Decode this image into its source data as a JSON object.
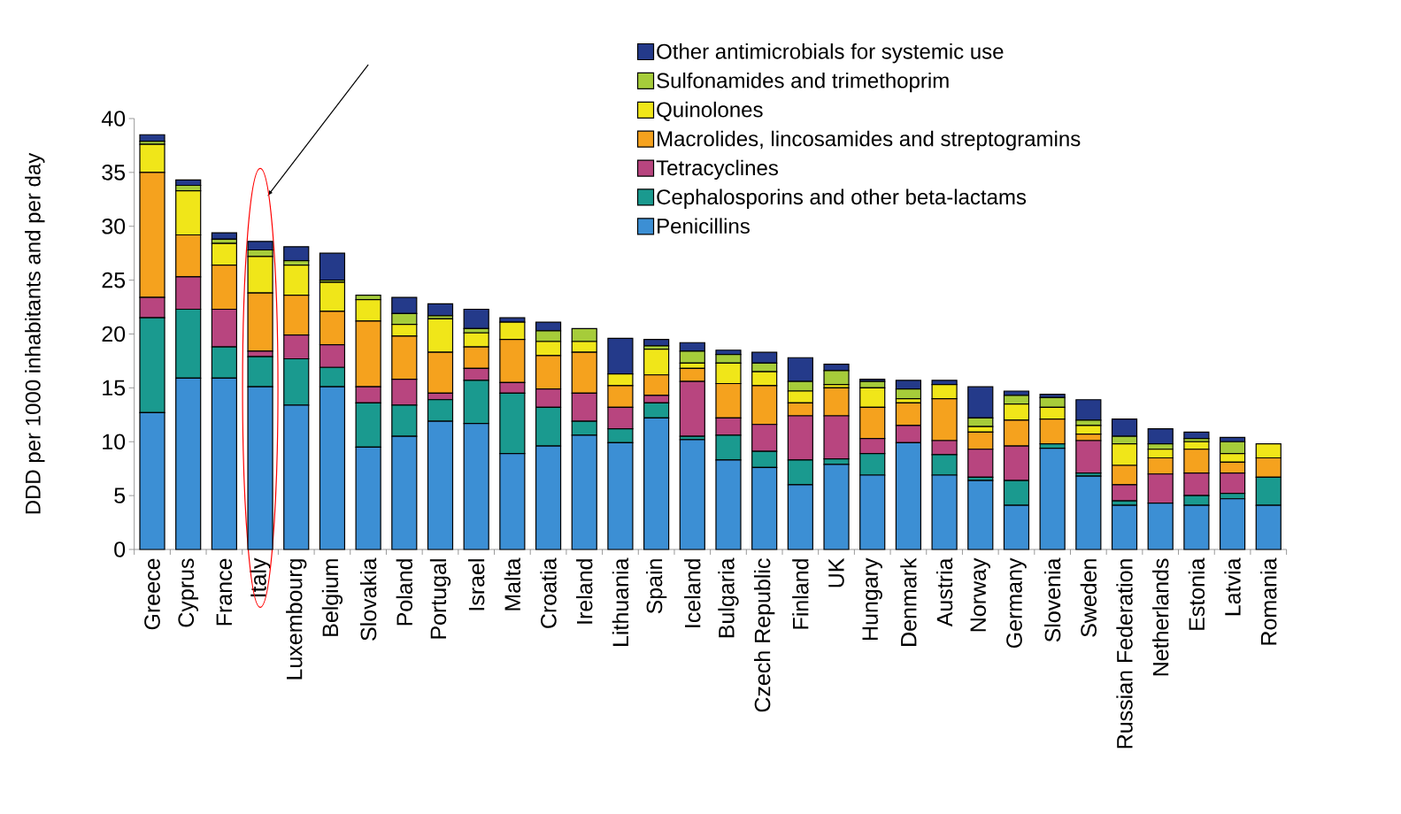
{
  "chart_data": {
    "type": "bar",
    "stacked": true,
    "ylabel": "DDD per 1000 inhabitants and per day",
    "categories": [
      "Greece",
      "Cyprus",
      "France",
      "Italy",
      "Luxembourg",
      "Belgium",
      "Slovakia",
      "Poland",
      "Portugal",
      "Israel",
      "Malta",
      "Croatia",
      "Ireland",
      "Lithuania",
      "Spain",
      "Iceland",
      "Bulgaria",
      "Czech Republic",
      "Finland",
      "UK",
      "Hungary",
      "Denmark",
      "Austria",
      "Norway",
      "Germany",
      "Slovenia",
      "Sweden",
      "Russian Federation",
      "Netherlands",
      "Estonia",
      "Latvia",
      "Romania"
    ],
    "series": [
      {
        "name": "Penicillins",
        "color": "#3c8fd4",
        "values": [
          12.7,
          15.9,
          15.9,
          15.1,
          13.4,
          15.1,
          9.5,
          10.5,
          11.9,
          11.7,
          8.9,
          9.6,
          10.6,
          9.9,
          12.2,
          10.2,
          8.3,
          7.6,
          6.0,
          7.9,
          6.9,
          9.9,
          6.9,
          6.4,
          4.1,
          9.4,
          6.8,
          4.1,
          4.3,
          4.1,
          4.7,
          4.1
        ]
      },
      {
        "name": "Cephalosporins and other beta-lactams",
        "color": "#1a9a8f",
        "values": [
          8.8,
          6.4,
          2.9,
          2.8,
          4.3,
          1.8,
          4.1,
          2.9,
          2.0,
          4.0,
          5.6,
          3.6,
          1.3,
          1.3,
          1.4,
          0.3,
          2.3,
          1.5,
          2.3,
          0.5,
          2.0,
          null,
          1.9,
          0.3,
          2.3,
          0.4,
          0.3,
          0.4,
          null,
          0.9,
          0.5,
          2.6
        ]
      },
      {
        "name": "Tetracyclines",
        "color": "#b8457f",
        "values": [
          1.9,
          3.0,
          3.5,
          0.5,
          2.2,
          2.1,
          1.5,
          2.4,
          0.6,
          1.1,
          1.0,
          1.7,
          2.6,
          2.0,
          0.7,
          5.1,
          1.6,
          2.5,
          4.1,
          4.0,
          1.4,
          1.6,
          1.3,
          2.6,
          3.2,
          0.0,
          3.0,
          1.5,
          2.7,
          2.1,
          1.9,
          null
        ]
      },
      {
        "name": "Macrolides, lincosamides and streptogramins",
        "color": "#f5a21e",
        "values": [
          11.6,
          3.9,
          4.1,
          5.4,
          3.7,
          3.1,
          6.1,
          4.0,
          3.8,
          2.0,
          4.0,
          3.1,
          3.8,
          2.0,
          1.9,
          1.2,
          3.2,
          3.6,
          1.2,
          2.6,
          2.9,
          2.1,
          3.9,
          1.6,
          2.4,
          2.3,
          0.6,
          1.8,
          1.5,
          2.2,
          1.0,
          1.8
        ]
      },
      {
        "name": "Quinolones",
        "color": "#f0e619",
        "values": [
          2.6,
          4.1,
          2.0,
          3.4,
          2.8,
          2.7,
          2.0,
          1.1,
          3.1,
          1.3,
          1.6,
          1.3,
          1.0,
          1.1,
          2.4,
          0.5,
          1.9,
          1.3,
          1.1,
          0.3,
          1.8,
          0.4,
          1.3,
          0.5,
          1.5,
          1.1,
          0.8,
          2.0,
          0.8,
          0.7,
          0.8,
          1.3
        ]
      },
      {
        "name": "Sulfonamides and trimethoprim",
        "color": "#a6cc3a",
        "values": [
          0.3,
          0.5,
          0.4,
          0.6,
          0.4,
          0.2,
          0.4,
          1.0,
          0.3,
          0.4,
          0.0,
          1.0,
          1.2,
          0.0,
          0.3,
          1.1,
          0.8,
          0.8,
          0.9,
          1.3,
          0.6,
          0.9,
          null,
          0.8,
          0.8,
          0.9,
          0.5,
          0.7,
          0.5,
          0.3,
          1.1,
          0.0
        ]
      },
      {
        "name": "Other antimicrobials for systemic use",
        "color": "#243a8a",
        "values": [
          0.6,
          0.5,
          0.6,
          0.8,
          1.3,
          2.5,
          0.0,
          1.5,
          1.1,
          1.8,
          0.4,
          0.8,
          null,
          3.3,
          0.6,
          0.8,
          0.4,
          1.0,
          2.2,
          0.6,
          0.2,
          0.8,
          0.4,
          2.9,
          0.4,
          0.3,
          1.9,
          1.6,
          1.4,
          0.6,
          0.4,
          null
        ]
      }
    ],
    "ylim": [
      0,
      40
    ],
    "yticks": [
      0,
      5,
      10,
      15,
      20,
      25,
      30,
      35,
      40
    ],
    "grid": false,
    "legend": "top right"
  }
}
